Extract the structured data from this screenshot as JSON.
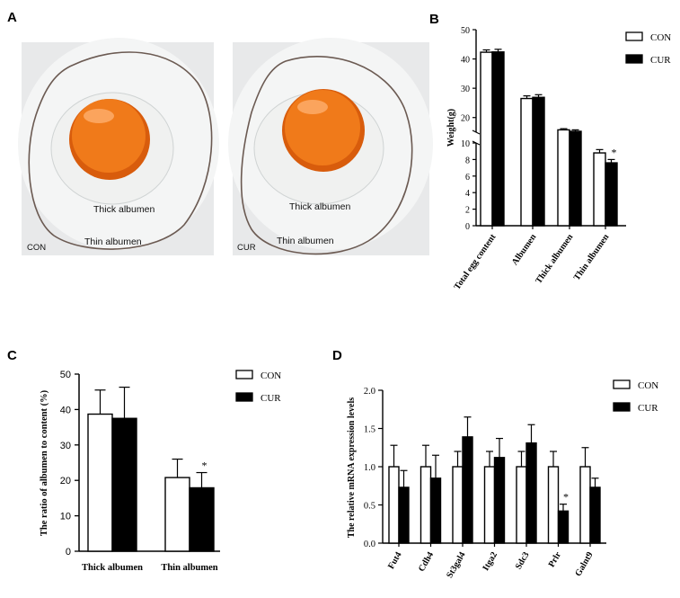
{
  "panels": {
    "A": {
      "letter": "A",
      "photos": [
        {
          "group": "CON",
          "thick_label": "Thick albumen",
          "thin_label": "Thin albumen"
        },
        {
          "group": "CUR",
          "thick_label": "Thick albumen",
          "thin_label": "Thin albumen"
        }
      ]
    },
    "B": {
      "letter": "B"
    },
    "C": {
      "letter": "C"
    },
    "D": {
      "letter": "D"
    }
  },
  "colors": {
    "con_fill": "#ffffff",
    "cur_fill": "#000000",
    "stroke": "#000000",
    "photo_bg": "#e9eaeb",
    "yolk": "#f07a1a",
    "yolk_edge": "#d85c0c"
  },
  "chart_data": [
    {
      "id": "B",
      "type": "bar",
      "ylabel": "Weight(g)",
      "categories": [
        "Total egg content",
        "Albumen",
        "Thick albumen",
        "Thin albumen"
      ],
      "series": [
        {
          "name": "CON",
          "values": [
            42.3,
            26.5,
            15.8,
            8.8
          ],
          "errors": [
            0.8,
            0.9,
            0.4,
            0.4
          ]
        },
        {
          "name": "CUR",
          "values": [
            42.4,
            26.9,
            15.3,
            7.6
          ],
          "errors": [
            0.9,
            0.9,
            0.5,
            0.4
          ]
        }
      ],
      "significance": [
        {
          "category": "Thin albumen",
          "series": "CUR",
          "mark": "*"
        }
      ],
      "axis_break": {
        "lower_range": [
          0,
          10
        ],
        "upper_range": [
          15,
          50
        ]
      },
      "lower_ticks": [
        "0",
        "2",
        "4",
        "6",
        "8",
        "10"
      ],
      "upper_ticks": [
        "20",
        "30",
        "40",
        "50"
      ],
      "legend": {
        "placement": "top-right",
        "entries": [
          "CON",
          "CUR"
        ]
      }
    },
    {
      "id": "C",
      "type": "bar",
      "ylabel": "The ratio of albumen to content (%)",
      "categories": [
        "Thick albumen",
        "Thin albumen"
      ],
      "series": [
        {
          "name": "CON",
          "values": [
            38.7,
            20.8
          ],
          "errors": [
            6.8,
            5.2
          ]
        },
        {
          "name": "CUR",
          "values": [
            37.5,
            17.9
          ],
          "errors": [
            8.8,
            4.3
          ]
        }
      ],
      "significance": [
        {
          "category": "Thin albumen",
          "series": "CUR",
          "mark": "*"
        }
      ],
      "ylim": [
        0,
        50
      ],
      "yticks": [
        "0",
        "10",
        "20",
        "30",
        "40",
        "50"
      ],
      "legend": {
        "placement": "top-right",
        "entries": [
          "CON",
          "CUR"
        ]
      }
    },
    {
      "id": "D",
      "type": "bar",
      "ylabel": "The relative mRNA expression levels",
      "categories": [
        "Fut4",
        "Cdh4",
        "St3gal4",
        "Itga2",
        "Sdc3",
        "Prlr",
        "Galnt9"
      ],
      "series": [
        {
          "name": "CON",
          "values": [
            1.0,
            1.0,
            1.0,
            1.0,
            1.0,
            1.0,
            1.0
          ],
          "errors": [
            0.28,
            0.28,
            0.2,
            0.2,
            0.2,
            0.2,
            0.25
          ]
        },
        {
          "name": "CUR",
          "values": [
            0.73,
            0.85,
            1.39,
            1.12,
            1.31,
            0.42,
            0.73
          ],
          "errors": [
            0.22,
            0.3,
            0.26,
            0.25,
            0.24,
            0.09,
            0.12
          ]
        }
      ],
      "significance": [
        {
          "category": "Prlr",
          "series": "CUR",
          "mark": "*"
        }
      ],
      "ylim": [
        0,
        2.0
      ],
      "yticks": [
        "0.0",
        "0.5",
        "1.0",
        "1.5",
        "2.0"
      ],
      "legend": {
        "placement": "top-right",
        "entries": [
          "CON",
          "CUR"
        ]
      }
    }
  ]
}
